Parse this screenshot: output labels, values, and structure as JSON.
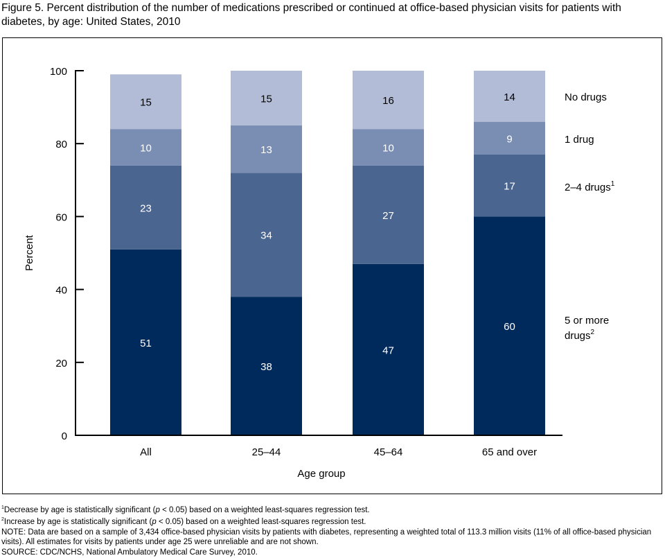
{
  "chart_data": {
    "type": "bar",
    "stacked": true,
    "title": "Figure 5. Percent distribution of the number of medications prescribed or continued at office-based physician visits for patients with diabetes, by age: United States, 2010",
    "xlabel": "Age group",
    "ylabel": "Percent",
    "ylim": [
      0,
      100
    ],
    "yticks": [
      "0",
      "20",
      "40",
      "60",
      "80",
      "100"
    ],
    "categories": [
      "All",
      "25–44",
      "45–64",
      "65 and over"
    ],
    "series": [
      {
        "name": "5 or more drugs",
        "sup": "2",
        "color": "#002a5c",
        "labelColor": "#ffffff",
        "values": [
          51,
          38,
          47,
          60
        ]
      },
      {
        "name": "2–4 drugs",
        "sup": "1",
        "color": "#4b6591",
        "labelColor": "#ffffff",
        "values": [
          23,
          34,
          27,
          17
        ]
      },
      {
        "name": "1 drug",
        "sup": "",
        "color": "#7a8db3",
        "labelColor": "#ffffff",
        "values": [
          10,
          13,
          10,
          9
        ]
      },
      {
        "name": "No drugs",
        "sup": "",
        "color": "#b2bcd6",
        "labelColor": "#000000",
        "values": [
          15,
          15,
          16,
          14
        ]
      }
    ],
    "legend_placement": "right",
    "grid": false
  },
  "footnotes": [
    {
      "sup": "1",
      "text": "Decrease by age is statistically significant (",
      "italic": "p",
      "rest": " < 0.05) based on a weighted least-squares regression test."
    },
    {
      "sup": "2",
      "text": "Increase by age is statistically significant (",
      "italic": "p",
      "rest": " < 0.05) based on a weighted least-squares regression test."
    }
  ],
  "note": "NOTE: Data are based on a sample of 3,434 office-based physician visits by patients with diabetes, representing a weighted total of 113.3 million visits (11% of all office-based physician visits). All estimates for visits by patients under age 25 were unreliable and are not shown.",
  "source": "SOURCE: CDC/NCHS, National Ambulatory Medical Care Survey, 2010."
}
